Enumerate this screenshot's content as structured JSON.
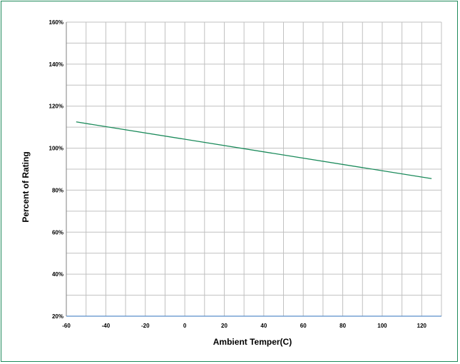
{
  "chart_data": {
    "type": "line",
    "title": "",
    "xlabel": "Ambient Temper(C)",
    "ylabel": "Percent of Rating",
    "xlim": [
      -60,
      130
    ],
    "ylim": [
      20,
      160
    ],
    "x_ticks": [
      -60,
      -40,
      -20,
      0,
      20,
      40,
      60,
      80,
      100,
      120
    ],
    "y_ticks": [
      20,
      40,
      60,
      80,
      100,
      120,
      140,
      160
    ],
    "y_tick_suffix": "%",
    "x_minor_step": 10,
    "y_minor_step": 10,
    "grid": true,
    "legend": "none",
    "series": [
      {
        "x": [
          -55,
          125
        ],
        "y": [
          112.5,
          85.5
        ],
        "color": "#1a8a5a"
      }
    ]
  },
  "colors": {
    "frame": "#1f8a5b",
    "grid": "#c0c0c0",
    "bottom_axis": "#5b8fc9"
  }
}
